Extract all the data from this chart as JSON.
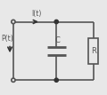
{
  "bg_color": "#e8e8e8",
  "wire_color": "#555555",
  "component_color": "#555555",
  "fill_color": "#e8e8e8",
  "node_color": "#333333",
  "terminal_color": "#e8e8e8",
  "label_I": "I(t)",
  "label_P": "P(t)",
  "label_C": "C",
  "label_R": "R",
  "fig_width": 1.2,
  "fig_height": 1.07,
  "dpi": 100
}
